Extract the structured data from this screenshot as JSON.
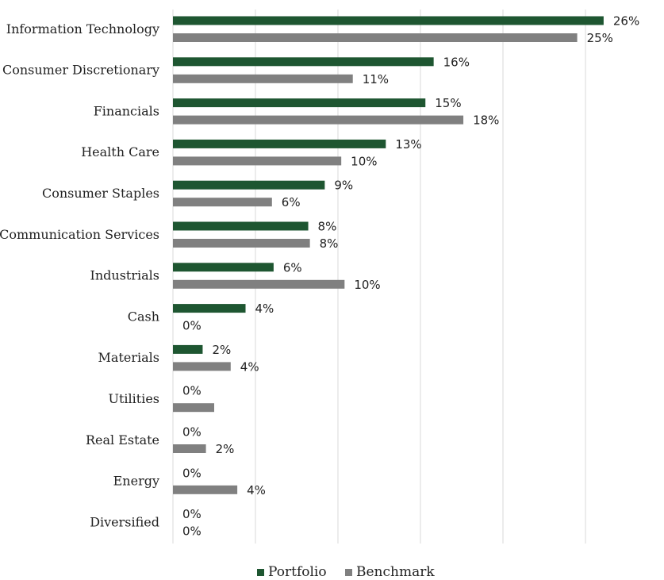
{
  "chart_data": {
    "type": "bar",
    "orientation": "horizontal",
    "categories": [
      "Information Technology",
      "Consumer Discretionary",
      "Financials",
      "Health Care",
      "Consumer Staples",
      "Communication Services",
      "Industrials",
      "Cash",
      "Materials",
      "Utilities",
      "Real Estate",
      "Energy",
      "Diversified"
    ],
    "series": [
      {
        "name": "Portfolio",
        "color": "#1e5631",
        "values": [
          26.1,
          15.8,
          15.3,
          12.9,
          9.2,
          8.2,
          6.1,
          4.4,
          1.8,
          0,
          0,
          0,
          0
        ],
        "labels": [
          "26%",
          "16%",
          "15%",
          "13%",
          "9%",
          "8%",
          "6%",
          "4%",
          "2%",
          "0%",
          "0%",
          "0%",
          "0%"
        ]
      },
      {
        "name": "Benchmark",
        "color": "#808080",
        "values": [
          24.5,
          10.9,
          17.6,
          10.2,
          6.0,
          8.3,
          10.4,
          0,
          3.5,
          2.5,
          2.0,
          3.9,
          0
        ],
        "labels": [
          "25%",
          "11%",
          "18%",
          "10%",
          "6%",
          "8%",
          "10%",
          "0%",
          "4%",
          "",
          "2%",
          "4%",
          "0%"
        ]
      }
    ],
    "xlim": [
      0,
      30
    ],
    "grid": true,
    "legend_position": "bottom"
  }
}
